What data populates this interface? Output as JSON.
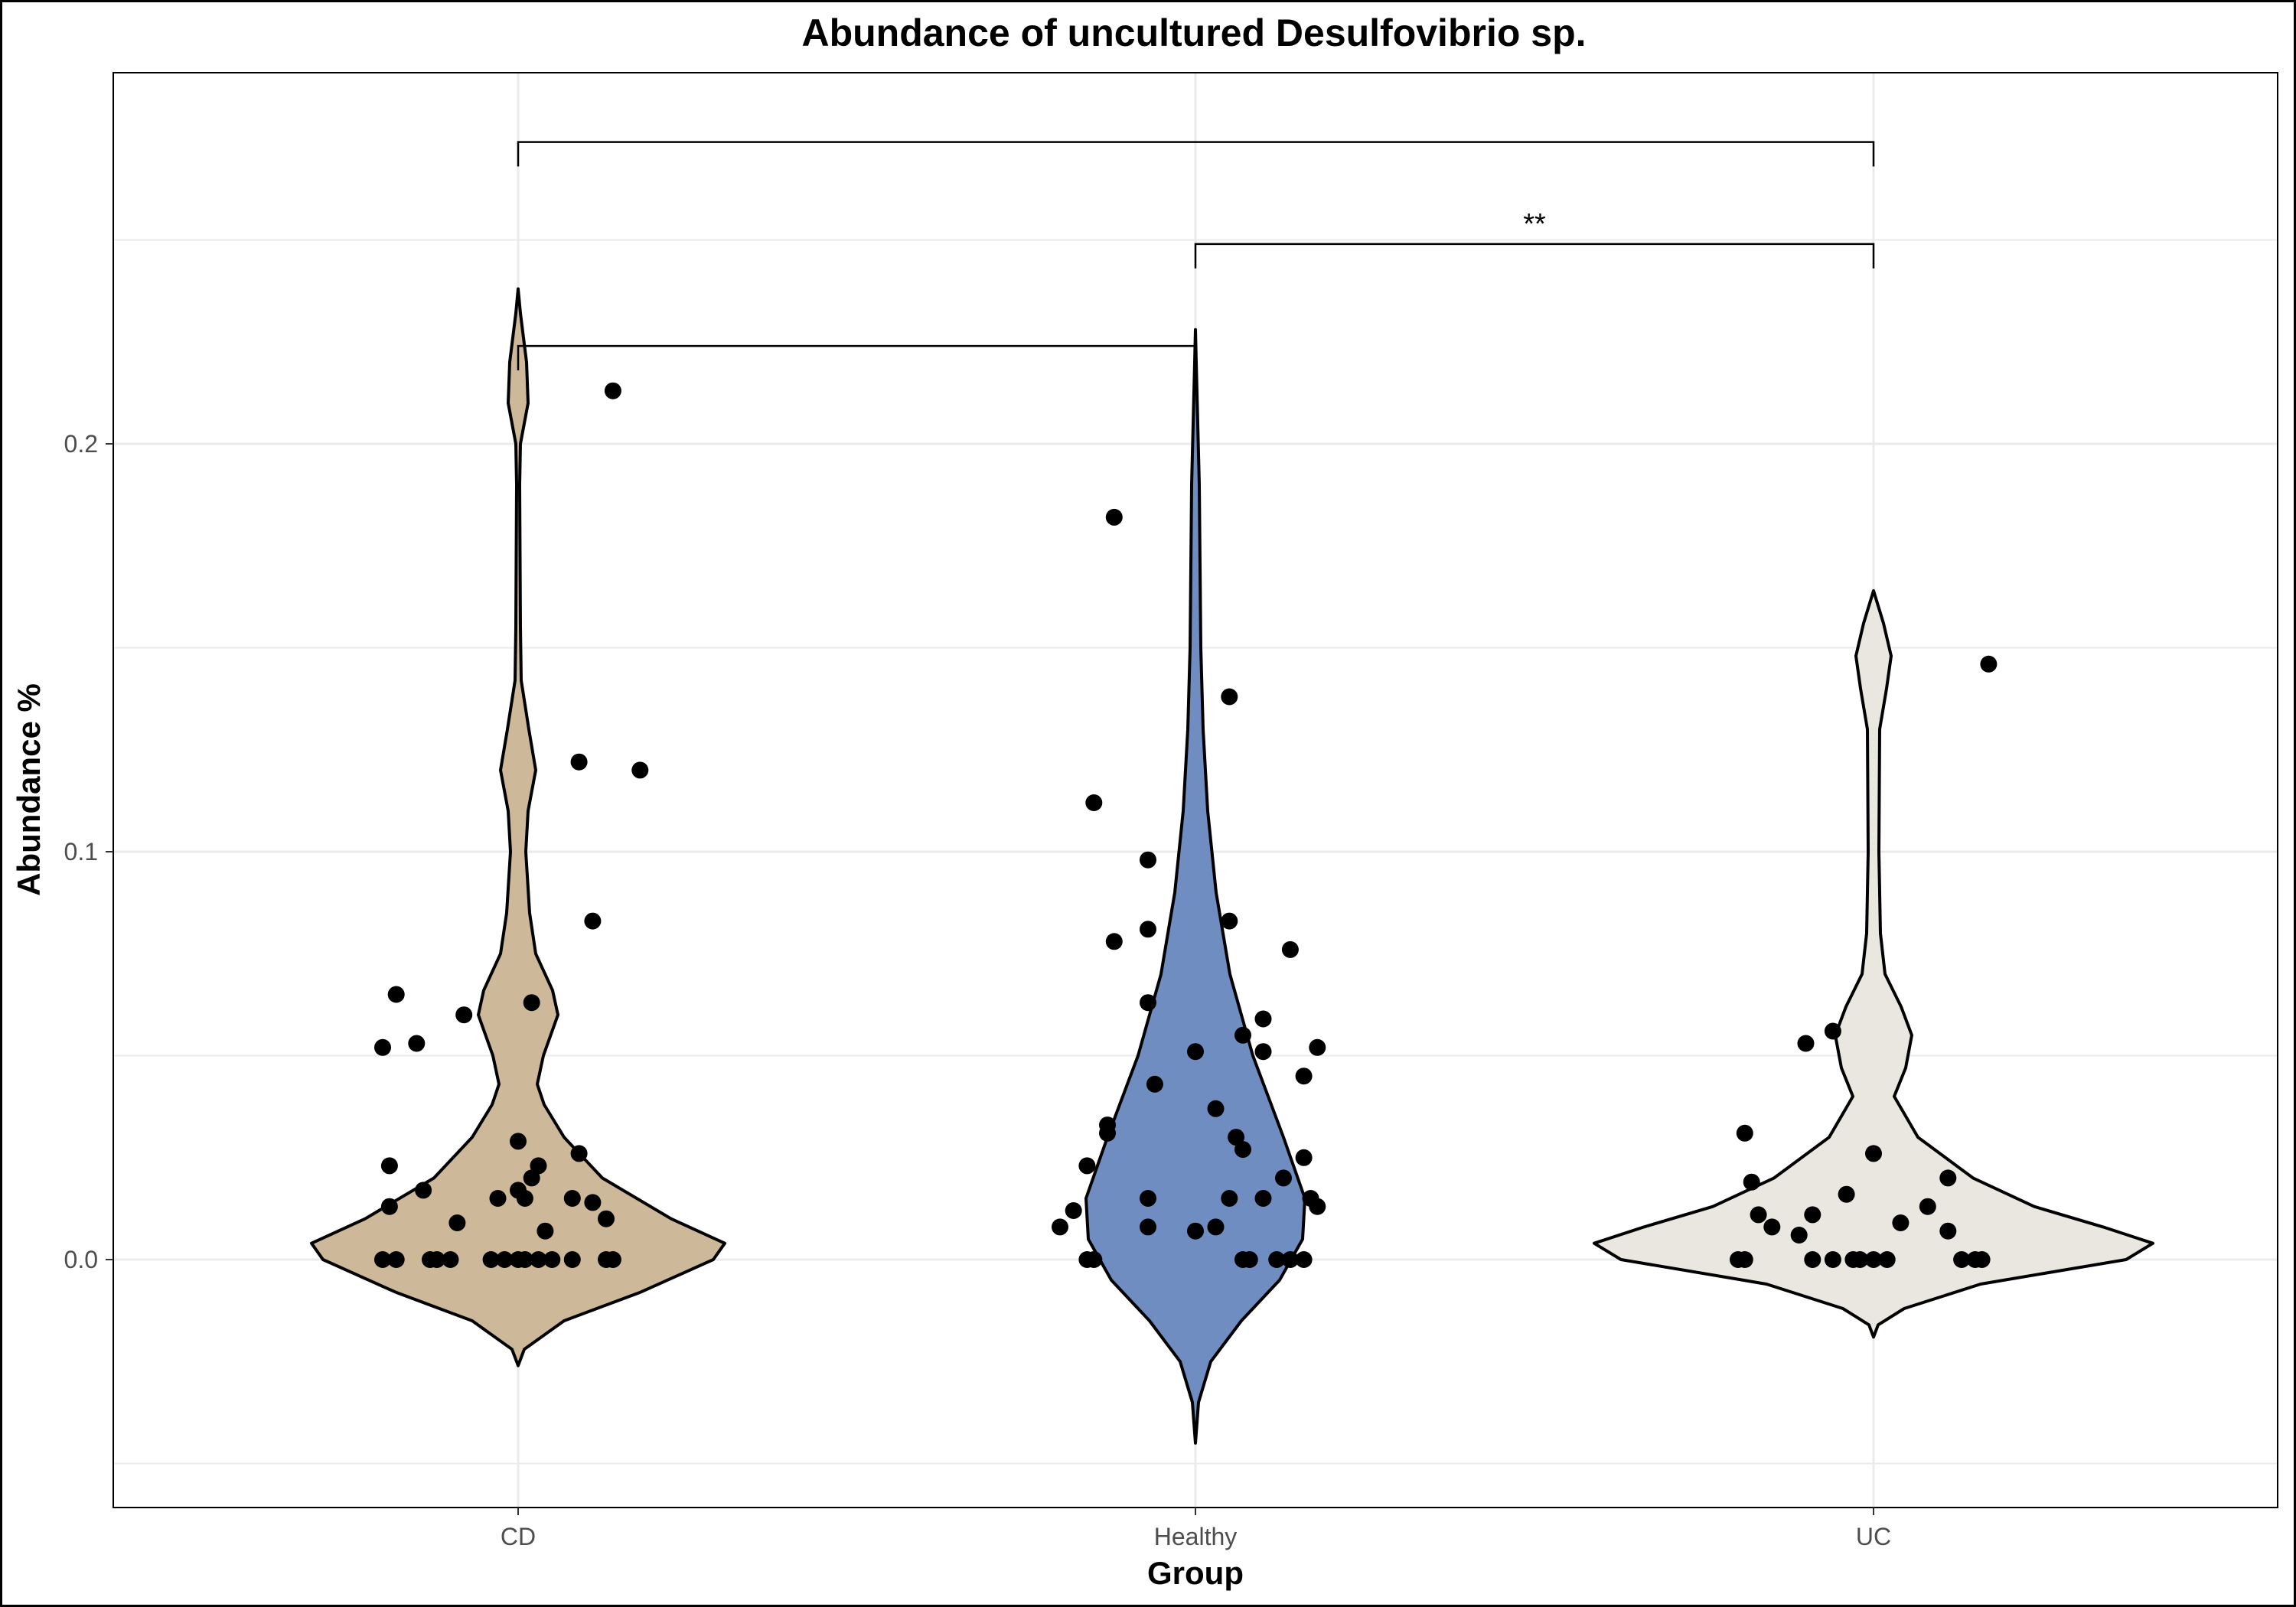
{
  "chart_data": {
    "type": "violin",
    "title": "Abundance of uncultured Desulfovibrio sp.",
    "xlabel": "Group",
    "ylabel": "Abundance %",
    "ylim": [
      -0.05,
      0.28
    ],
    "y_ticks": [
      "0.0",
      "0.1",
      "0.2"
    ],
    "grid": true,
    "categories": [
      "CD",
      "Healthy",
      "UC"
    ],
    "colors": {
      "CD": "#CDB99A",
      "Healthy": "#6F8DC1",
      "UC": "#EAE7E0"
    },
    "groups": [
      {
        "name": "CD",
        "violin_range": [
          -0.026,
          0.238
        ],
        "points": [
          [
            -0.2,
            0.0
          ],
          [
            -0.18,
            0.0
          ],
          [
            -0.13,
            0.0
          ],
          [
            -0.12,
            0.0
          ],
          [
            -0.1,
            0.0
          ],
          [
            -0.04,
            0.0
          ],
          [
            -0.02,
            0.0
          ],
          [
            0.0,
            0.0
          ],
          [
            0.01,
            0.0
          ],
          [
            0.03,
            0.0
          ],
          [
            0.05,
            0.0
          ],
          [
            0.08,
            0.0
          ],
          [
            0.13,
            0.0
          ],
          [
            0.14,
            0.0
          ],
          [
            -0.19,
            0.013
          ],
          [
            -0.14,
            0.017
          ],
          [
            -0.09,
            0.009
          ],
          [
            -0.03,
            0.015
          ],
          [
            0.0,
            0.017
          ],
          [
            0.01,
            0.015
          ],
          [
            0.04,
            0.007
          ],
          [
            0.08,
            0.015
          ],
          [
            0.11,
            0.014
          ],
          [
            0.13,
            0.01
          ],
          [
            -0.19,
            0.023
          ],
          [
            0.0,
            0.029
          ],
          [
            0.02,
            0.02
          ],
          [
            0.03,
            0.023
          ],
          [
            0.09,
            0.026
          ],
          [
            -0.2,
            0.052
          ],
          [
            -0.15,
            0.053
          ],
          [
            -0.18,
            0.065
          ],
          [
            -0.08,
            0.06
          ],
          [
            0.02,
            0.063
          ],
          [
            0.11,
            0.083
          ],
          [
            0.09,
            0.122
          ],
          [
            0.18,
            0.12
          ],
          [
            0.14,
            0.213
          ]
        ]
      },
      {
        "name": "Healthy",
        "violin_range": [
          -0.045,
          0.228
        ],
        "points": [
          [
            -0.16,
            0.0
          ],
          [
            -0.15,
            0.0
          ],
          [
            0.07,
            0.0
          ],
          [
            0.08,
            0.0
          ],
          [
            0.12,
            0.0
          ],
          [
            0.14,
            0.0
          ],
          [
            0.16,
            0.0
          ],
          [
            -0.2,
            0.008
          ],
          [
            -0.18,
            0.012
          ],
          [
            -0.07,
            0.008
          ],
          [
            0.0,
            0.007
          ],
          [
            0.03,
            0.008
          ],
          [
            0.05,
            0.015
          ],
          [
            0.1,
            0.015
          ],
          [
            0.13,
            0.02
          ],
          [
            0.16,
            0.025
          ],
          [
            0.17,
            0.015
          ],
          [
            0.18,
            0.013
          ],
          [
            0.07,
            0.027
          ],
          [
            0.06,
            0.03
          ],
          [
            -0.16,
            0.023
          ],
          [
            -0.13,
            0.033
          ],
          [
            -0.13,
            0.031
          ],
          [
            -0.07,
            0.015
          ],
          [
            -0.06,
            0.043
          ],
          [
            0.03,
            0.037
          ],
          [
            0.0,
            0.051
          ],
          [
            0.07,
            0.055
          ],
          [
            0.1,
            0.051
          ],
          [
            0.1,
            0.059
          ],
          [
            0.16,
            0.045
          ],
          [
            0.18,
            0.052
          ],
          [
            -0.07,
            0.063
          ],
          [
            -0.07,
            0.081
          ],
          [
            -0.12,
            0.078
          ],
          [
            0.05,
            0.083
          ],
          [
            0.14,
            0.076
          ],
          [
            -0.07,
            0.098
          ],
          [
            -0.15,
            0.112
          ],
          [
            0.05,
            0.138
          ],
          [
            -0.12,
            0.182
          ]
        ]
      },
      {
        "name": "UC",
        "violin_range": [
          -0.019,
          0.164
        ],
        "points": [
          [
            -0.2,
            0.0
          ],
          [
            -0.19,
            0.0
          ],
          [
            -0.09,
            0.0
          ],
          [
            -0.06,
            0.0
          ],
          [
            -0.03,
            0.0
          ],
          [
            -0.02,
            0.0
          ],
          [
            0.0,
            0.0
          ],
          [
            0.02,
            0.0
          ],
          [
            0.13,
            0.0
          ],
          [
            0.15,
            0.0
          ],
          [
            0.16,
            0.0
          ],
          [
            -0.17,
            0.011
          ],
          [
            -0.15,
            0.008
          ],
          [
            -0.11,
            0.006
          ],
          [
            -0.09,
            0.011
          ],
          [
            0.04,
            0.009
          ],
          [
            0.08,
            0.013
          ],
          [
            0.11,
            0.007
          ],
          [
            -0.18,
            0.019
          ],
          [
            -0.04,
            0.016
          ],
          [
            0.0,
            0.026
          ],
          [
            0.11,
            0.02
          ],
          [
            -0.19,
            0.031
          ],
          [
            -0.06,
            0.056
          ],
          [
            -0.1,
            0.053
          ],
          [
            0.17,
            0.146
          ]
        ]
      }
    ],
    "comparisons": [
      {
        "groups": [
          "CD",
          "Healthy"
        ],
        "y": 0.224,
        "label": ""
      },
      {
        "groups": [
          "Healthy",
          "UC"
        ],
        "y": 0.249,
        "label": "**"
      },
      {
        "groups": [
          "CD",
          "UC"
        ],
        "y": 0.274,
        "label": ""
      }
    ]
  }
}
